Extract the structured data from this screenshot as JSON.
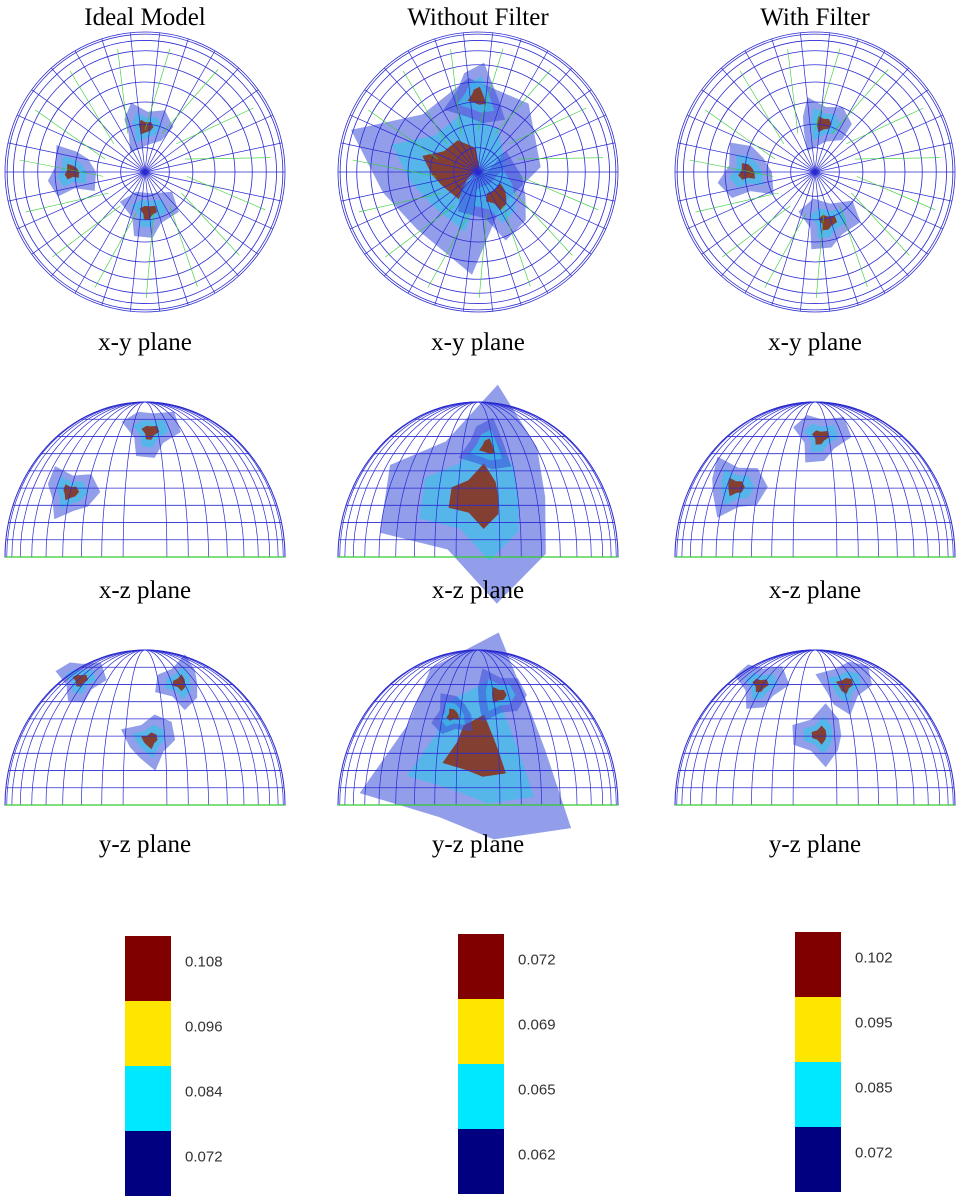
{
  "columns": [
    {
      "title": "Ideal Model",
      "panels": [
        "x-y plane",
        "x-z plane",
        "y-z plane"
      ],
      "colorbar": {
        "labels": [
          "0.108",
          "0.096",
          "0.084",
          "0.072"
        ]
      }
    },
    {
      "title": "Without Filter",
      "panels": [
        "x-y plane",
        "x-z plane",
        "y-z plane"
      ],
      "colorbar": {
        "labels": [
          "0.072",
          "0.069",
          "0.065",
          "0.062"
        ]
      }
    },
    {
      "title": "With Filter",
      "panels": [
        "x-y plane",
        "x-z plane",
        "y-z plane"
      ],
      "colorbar": {
        "labels": [
          "0.102",
          "0.095",
          "0.085",
          "0.072"
        ]
      }
    }
  ],
  "colorbar_colors": [
    "#800000",
    "#ffe600",
    "#00e8ff",
    "#000080"
  ]
}
